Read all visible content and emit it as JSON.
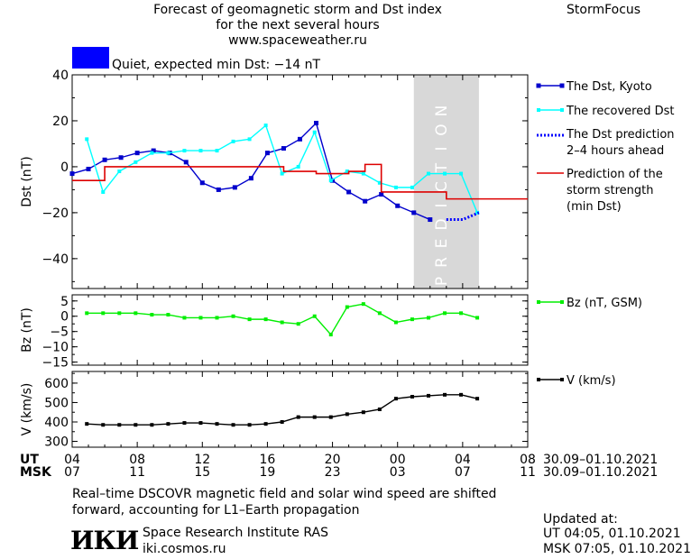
{
  "header": {
    "title_line1": "Forecast of geomagnetic storm and Dst index",
    "title_line2": "for the next several hours",
    "title_line3": "www.spaceweather.ru",
    "brand": "StormFocus"
  },
  "status": {
    "label": "Quiet, expected min Dst: −14 nT",
    "color": "#0000ff"
  },
  "prediction_label": "PREDICTION",
  "x_axis": {
    "ut_prefix": "UT",
    "msk_prefix": "MSK",
    "ut_ticks": [
      "04",
      "08",
      "12",
      "16",
      "20",
      "00",
      "04",
      "08"
    ],
    "msk_ticks": [
      "07",
      "11",
      "15",
      "19",
      "23",
      "03",
      "07",
      "11"
    ],
    "ut_range": "30.09–01.10.2021",
    "msk_range": "30.09–01.10.2021"
  },
  "footer": {
    "note_line1": "Real–time DSCOVR magnetic field and solar wind speed are shifted",
    "note_line2": "forward, accounting for L1–Earth propagation",
    "institute": "Space Research Institute RAS",
    "site": "iki.cosmos.ru",
    "logo_text": "ИКИ",
    "updated_label": "Updated at:",
    "updated_ut": "UT   04:05, 01.10.2021",
    "updated_msk": "MSK 07:05, 01.10.2021"
  },
  "colors": {
    "dst": "#0000cc",
    "recovered": "#00ffff",
    "prediction": "#0000ff",
    "storm": "#dd0000",
    "bz": "#00ee00",
    "v": "#000000",
    "prediction_band": "#d8d8d8"
  },
  "chart_data": [
    {
      "type": "line",
      "ylabel": "Dst (nT)",
      "ylim": [
        -53,
        40
      ],
      "yticks": [
        40,
        20,
        0,
        -20,
        -40
      ],
      "xlim": [
        0,
        28
      ],
      "prediction_band": [
        21,
        25
      ],
      "legend": [
        {
          "key": "dst",
          "text": [
            "The Dst, Kyoto"
          ]
        },
        {
          "key": "recovered",
          "text": [
            "The recovered Dst"
          ]
        },
        {
          "key": "prediction",
          "text": [
            "The Dst prediction",
            "2–4 hours ahead"
          ]
        },
        {
          "key": "storm",
          "text": [
            "Prediction of the",
            "storm strength",
            "(min Dst)"
          ]
        }
      ],
      "series": [
        {
          "name": "The Dst, Kyoto",
          "key": "dst",
          "x": [
            0,
            1,
            2,
            3,
            4,
            5,
            6,
            7,
            8,
            9,
            10,
            11,
            12,
            13,
            14,
            15,
            16,
            17,
            18,
            19,
            20,
            21,
            22
          ],
          "y": [
            -3,
            -1,
            3,
            4,
            6,
            7,
            6,
            2,
            -7,
            -10,
            -9,
            -5,
            6,
            8,
            12,
            19,
            -6,
            -11,
            -15,
            -12,
            -17,
            -20,
            -23
          ]
        },
        {
          "name": "The recovered Dst",
          "key": "recovered",
          "x": [
            0.9,
            1.9,
            2.9,
            3.9,
            4.9,
            5.9,
            6.9,
            7.9,
            8.9,
            9.9,
            10.9,
            11.9,
            12.9,
            13.9,
            14.9,
            15.9,
            16.9,
            17.9,
            18.9,
            19.9,
            20.9,
            21.9,
            22.9,
            23.9,
            24.9
          ],
          "y": [
            12,
            -11,
            -2,
            2,
            6,
            6,
            7,
            7,
            7,
            11,
            12,
            18,
            -3,
            0,
            15,
            -6,
            -2,
            -3,
            -7,
            -9,
            -9,
            -3,
            -3,
            -3,
            -20
          ]
        },
        {
          "name": "The Dst prediction 2–4 hours ahead",
          "key": "prediction",
          "x": [
            23,
            24,
            25
          ],
          "y": [
            -23,
            -23,
            -20
          ]
        },
        {
          "name": "Prediction of the storm strength (min Dst)",
          "key": "storm",
          "x": [
            0,
            1,
            2,
            12,
            13,
            14,
            15,
            16,
            17,
            18,
            19,
            20,
            21,
            22,
            23,
            24,
            25,
            26,
            27,
            28
          ],
          "y": [
            -6,
            -6,
            0,
            0,
            -2,
            -2,
            -3,
            -3,
            -2,
            1,
            -11,
            -11,
            -11,
            -11,
            -14,
            -14,
            -14,
            -14,
            -14,
            -14
          ]
        }
      ]
    },
    {
      "type": "line",
      "ylabel": "Bz (nT)",
      "ylim": [
        -16,
        7
      ],
      "yticks": [
        5,
        0,
        -5,
        -10,
        -15
      ],
      "legend": [
        {
          "key": "bz",
          "text": [
            "Bz (nT, GSM)"
          ]
        }
      ],
      "series": [
        {
          "name": "Bz (nT, GSM)",
          "key": "bz",
          "x": [
            0.9,
            1.9,
            2.9,
            3.9,
            4.9,
            5.9,
            6.9,
            7.9,
            8.9,
            9.9,
            10.9,
            11.9,
            12.9,
            13.9,
            14.9,
            15.9,
            16.9,
            17.9,
            18.9,
            19.9,
            20.9,
            21.9,
            22.9,
            23.9,
            24.9
          ],
          "y": [
            1,
            1,
            1,
            1,
            0.5,
            0.5,
            -0.5,
            -0.5,
            -0.5,
            0,
            -1,
            -1,
            -2,
            -2.5,
            0,
            -6,
            3,
            4,
            1,
            -2,
            -1,
            -0.5,
            1,
            1,
            -0.5
          ]
        }
      ]
    },
    {
      "type": "line",
      "ylabel": "V (km/s)",
      "ylim": [
        270,
        660
      ],
      "yticks": [
        600,
        500,
        400,
        300
      ],
      "legend": [
        {
          "key": "v",
          "text": [
            "V (km/s)"
          ]
        }
      ],
      "series": [
        {
          "name": "V (km/s)",
          "key": "v",
          "x": [
            0.9,
            1.9,
            2.9,
            3.9,
            4.9,
            5.9,
            6.9,
            7.9,
            8.9,
            9.9,
            10.9,
            11.9,
            12.9,
            13.9,
            14.9,
            15.9,
            16.9,
            17.9,
            18.9,
            19.9,
            20.9,
            21.9,
            22.9,
            23.9,
            24.9
          ],
          "y": [
            390,
            385,
            385,
            385,
            385,
            390,
            395,
            395,
            390,
            385,
            385,
            390,
            400,
            425,
            425,
            425,
            440,
            450,
            465,
            520,
            530,
            535,
            540,
            540,
            520
          ]
        }
      ]
    }
  ]
}
